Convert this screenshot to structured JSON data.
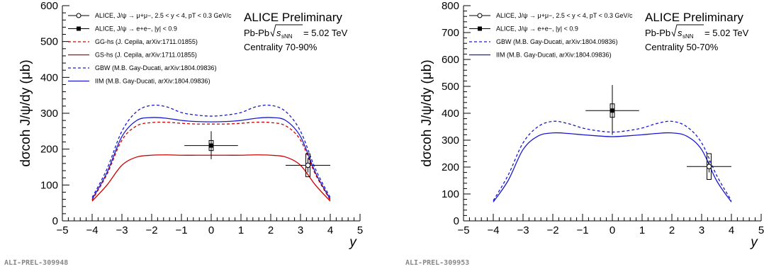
{
  "chart_data": [
    {
      "type": "line",
      "title": "ALICE Preliminary",
      "annotations": [
        "Pb-Pb",
        "= 5.02 TeV",
        "Centrality 70-90%"
      ],
      "sqrt_s_label": "sNN",
      "ylabel": "dσcoh J/ψ/dy (μb)",
      "xlabel": "y",
      "xlim": [
        -5,
        5
      ],
      "ylim": [
        0,
        600
      ],
      "xticks": [
        "−5",
        "−4",
        "−3",
        "−2",
        "−1",
        "0",
        "1",
        "2",
        "3",
        "4",
        "5"
      ],
      "yticks": [
        "0",
        "100",
        "200",
        "300",
        "400",
        "500",
        "600"
      ],
      "reference": "ALI-PREL-309948",
      "legend_position": "top-left",
      "legend": [
        {
          "label": "ALICE, J/ψ → μ+μ−, 2.5 < y < 4, pT < 0.3 GeV/c",
          "marker": "open-circle"
        },
        {
          "label": "ALICE, J/ψ → e+e−, |y| < 0.9",
          "marker": "filled-square"
        },
        {
          "label": "GG-hs (J. Cepila, arXiv:1711.01855)",
          "style": "dashed",
          "color": "#cc0000"
        },
        {
          "label": "GS-hs (J. Cepila, arXiv:1711.01855)",
          "style": "solid",
          "color": "#cc0000"
        },
        {
          "label": "GBW (M.B. Gay-Ducati, arXiv:1804.09836)",
          "style": "dashed",
          "color": "#1a1acc"
        },
        {
          "label": "IIM (M.B. Gay-Ducati, arXiv:1804.09836)",
          "style": "solid",
          "color": "#1a1acc"
        }
      ],
      "series": [
        {
          "name": "GBW (M.B. Gay-Ducati, arXiv:1804.09836)",
          "color": "#1a1acc",
          "dash": true,
          "x": [
            -4,
            -3.5,
            -3,
            -2.5,
            -2,
            -1.5,
            -1,
            -0.5,
            0,
            0.5,
            1,
            1.5,
            2,
            2.5,
            3,
            3.5,
            4
          ],
          "y": [
            65,
            145,
            250,
            305,
            322,
            318,
            302,
            295,
            292,
            295,
            302,
            318,
            322,
            305,
            250,
            145,
            65
          ]
        },
        {
          "name": "IIM (M.B. Gay-Ducati, arXiv:1804.09836)",
          "color": "#1a1acc",
          "dash": false,
          "x": [
            -4,
            -3.5,
            -3,
            -2.5,
            -2,
            -1.5,
            -1,
            -0.5,
            0,
            0.5,
            1,
            1.5,
            2,
            2.5,
            3,
            3.5,
            4
          ],
          "y": [
            60,
            135,
            235,
            280,
            288,
            286,
            280,
            277,
            276,
            277,
            280,
            286,
            288,
            280,
            235,
            135,
            60
          ]
        },
        {
          "name": "GG-hs (J. Cepila, arXiv:1711.01855)",
          "color": "#cc0000",
          "dash": true,
          "x": [
            -4,
            -3.5,
            -3,
            -2.5,
            -2,
            -1.5,
            -1,
            -0.5,
            0,
            0.5,
            1,
            1.5,
            2,
            2.5,
            3,
            3.5,
            4
          ],
          "y": [
            58,
            130,
            225,
            265,
            274,
            275,
            272,
            270,
            270,
            270,
            272,
            275,
            274,
            265,
            225,
            130,
            58
          ]
        },
        {
          "name": "GS-hs (J. Cepila, arXiv:1711.01855)",
          "color": "#cc0000",
          "dash": false,
          "x": [
            -4,
            -3.5,
            -3,
            -2.5,
            -2,
            -1.5,
            -1,
            -0.5,
            0,
            0.5,
            1,
            1.5,
            2,
            2.5,
            3,
            3.5,
            4
          ],
          "y": [
            55,
            100,
            155,
            178,
            183,
            184,
            183,
            183,
            183,
            183,
            183,
            184,
            183,
            178,
            155,
            100,
            55
          ]
        }
      ],
      "points": [
        {
          "name": "ALICE, J/ψ → e+e−, |y| < 0.9",
          "marker": "filled-square",
          "x": 0,
          "y": 210,
          "xerr": 0.9,
          "yerr_low": 38,
          "yerr_high": 40,
          "sys": 14,
          "sys_halfwidth": 0.07
        },
        {
          "name": "ALICE, J/ψ → μ+μ−, 2.5 < y < 4, pT < 0.3 GeV/c",
          "marker": "open-circle",
          "x": 3.25,
          "y": 155,
          "xerr": 0.75,
          "yerr_low": 20,
          "yerr_high": 20,
          "sys": 32,
          "sys_halfwidth": 0.07
        }
      ]
    },
    {
      "type": "line",
      "title": "ALICE Preliminary",
      "annotations": [
        "Pb-Pb",
        "= 5.02 TeV",
        "Centrality 50-70%"
      ],
      "sqrt_s_label": "sNN",
      "ylabel": "dσcoh J/ψ/dy (μb)",
      "xlabel": "y",
      "xlim": [
        -5,
        5
      ],
      "ylim": [
        0,
        800
      ],
      "xticks": [
        "−5",
        "−4",
        "−3",
        "−2",
        "−1",
        "0",
        "1",
        "2",
        "3",
        "4",
        "5"
      ],
      "yticks": [
        "0",
        "100",
        "200",
        "300",
        "400",
        "500",
        "600",
        "700",
        "800"
      ],
      "reference": "ALI-PREL-309953",
      "legend_position": "top-left",
      "legend": [
        {
          "label": "ALICE, J/ψ → μ+μ−, 2.5 < y < 4, pT < 0.3 GeV/c",
          "marker": "open-circle"
        },
        {
          "label": "ALICE, J/ψ → e+e−, |y| < 0.9",
          "marker": "filled-square"
        },
        {
          "label": "GBW (M.B. Gay-Ducati, arXiv:1804.09836)",
          "style": "dashed",
          "color": "#1a1acc"
        },
        {
          "label": "IIM (M.B. Gay-Ducati, arXiv:1804.09836)",
          "style": "solid",
          "color": "#1a1acc"
        }
      ],
      "series": [
        {
          "name": "GBW (M.B. Gay-Ducati, arXiv:1804.09836)",
          "color": "#1a1acc",
          "dash": true,
          "x": [
            -4,
            -3.5,
            -3,
            -2.5,
            -2,
            -1.5,
            -1,
            -0.5,
            0,
            0.5,
            1,
            1.5,
            2,
            2.5,
            3,
            3.5,
            4
          ],
          "y": [
            75,
            170,
            290,
            350,
            370,
            362,
            345,
            335,
            330,
            335,
            345,
            362,
            370,
            350,
            290,
            170,
            75
          ]
        },
        {
          "name": "IIM (M.B. Gay-Ducati, arXiv:1804.09836)",
          "color": "#1a1acc",
          "dash": false,
          "x": [
            -4,
            -3.5,
            -3,
            -2.5,
            -2,
            -1.5,
            -1,
            -0.5,
            0,
            0.5,
            1,
            1.5,
            2,
            2.5,
            3,
            3.5,
            4
          ],
          "y": [
            70,
            150,
            265,
            315,
            327,
            325,
            320,
            316,
            313,
            316,
            320,
            325,
            327,
            315,
            265,
            150,
            70
          ]
        }
      ],
      "points": [
        {
          "name": "ALICE, J/ψ → e+e−, |y| < 0.9",
          "marker": "filled-square",
          "x": 0,
          "y": 410,
          "xerr": 0.9,
          "yerr_low": 90,
          "yerr_high": 95,
          "sys": 25,
          "sys_halfwidth": 0.07
        },
        {
          "name": "ALICE, J/ψ → μ+μ−, 2.5 < y < 4, pT < 0.3 GeV/c",
          "marker": "open-circle",
          "x": 3.25,
          "y": 202,
          "xerr": 0.75,
          "yerr_low": 22,
          "yerr_high": 22,
          "sys": 48,
          "sys_halfwidth": 0.07
        }
      ]
    }
  ]
}
